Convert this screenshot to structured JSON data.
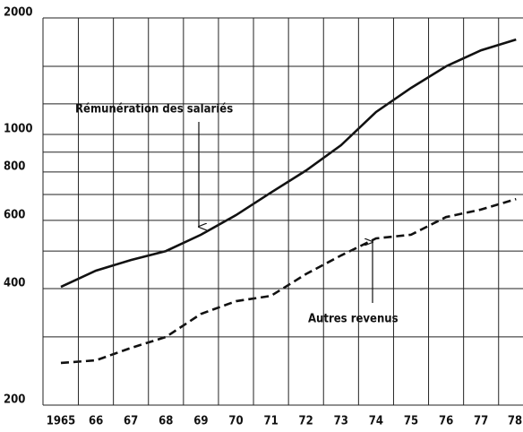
{
  "chart_data": {
    "type": "line",
    "log_scale": true,
    "categories": [
      "1965",
      "66",
      "67",
      "68",
      "69",
      "70",
      "71",
      "72",
      "73",
      "74",
      "75",
      "76",
      "77",
      "78"
    ],
    "series": [
      {
        "name": "Rémunération des salariés",
        "color": "#111111",
        "dash": "solid",
        "values": [
          404,
          445,
          474,
          500,
          551,
          619,
          708,
          807,
          938,
          1143,
          1319,
          1500,
          1650,
          1759
        ]
      },
      {
        "name": "Autres revenus",
        "color": "#111111",
        "dash": "dashed",
        "values": [
          257,
          261,
          281,
          300,
          344,
          371,
          383,
          436,
          487,
          539,
          551,
          612,
          640,
          681
        ]
      }
    ],
    "ylim": [
      200,
      2000
    ],
    "yticks": [
      200,
      400,
      600,
      800,
      1000,
      2000
    ],
    "ygrid": [
      300,
      500,
      700,
      900,
      1200,
      1500
    ],
    "grid": true
  }
}
